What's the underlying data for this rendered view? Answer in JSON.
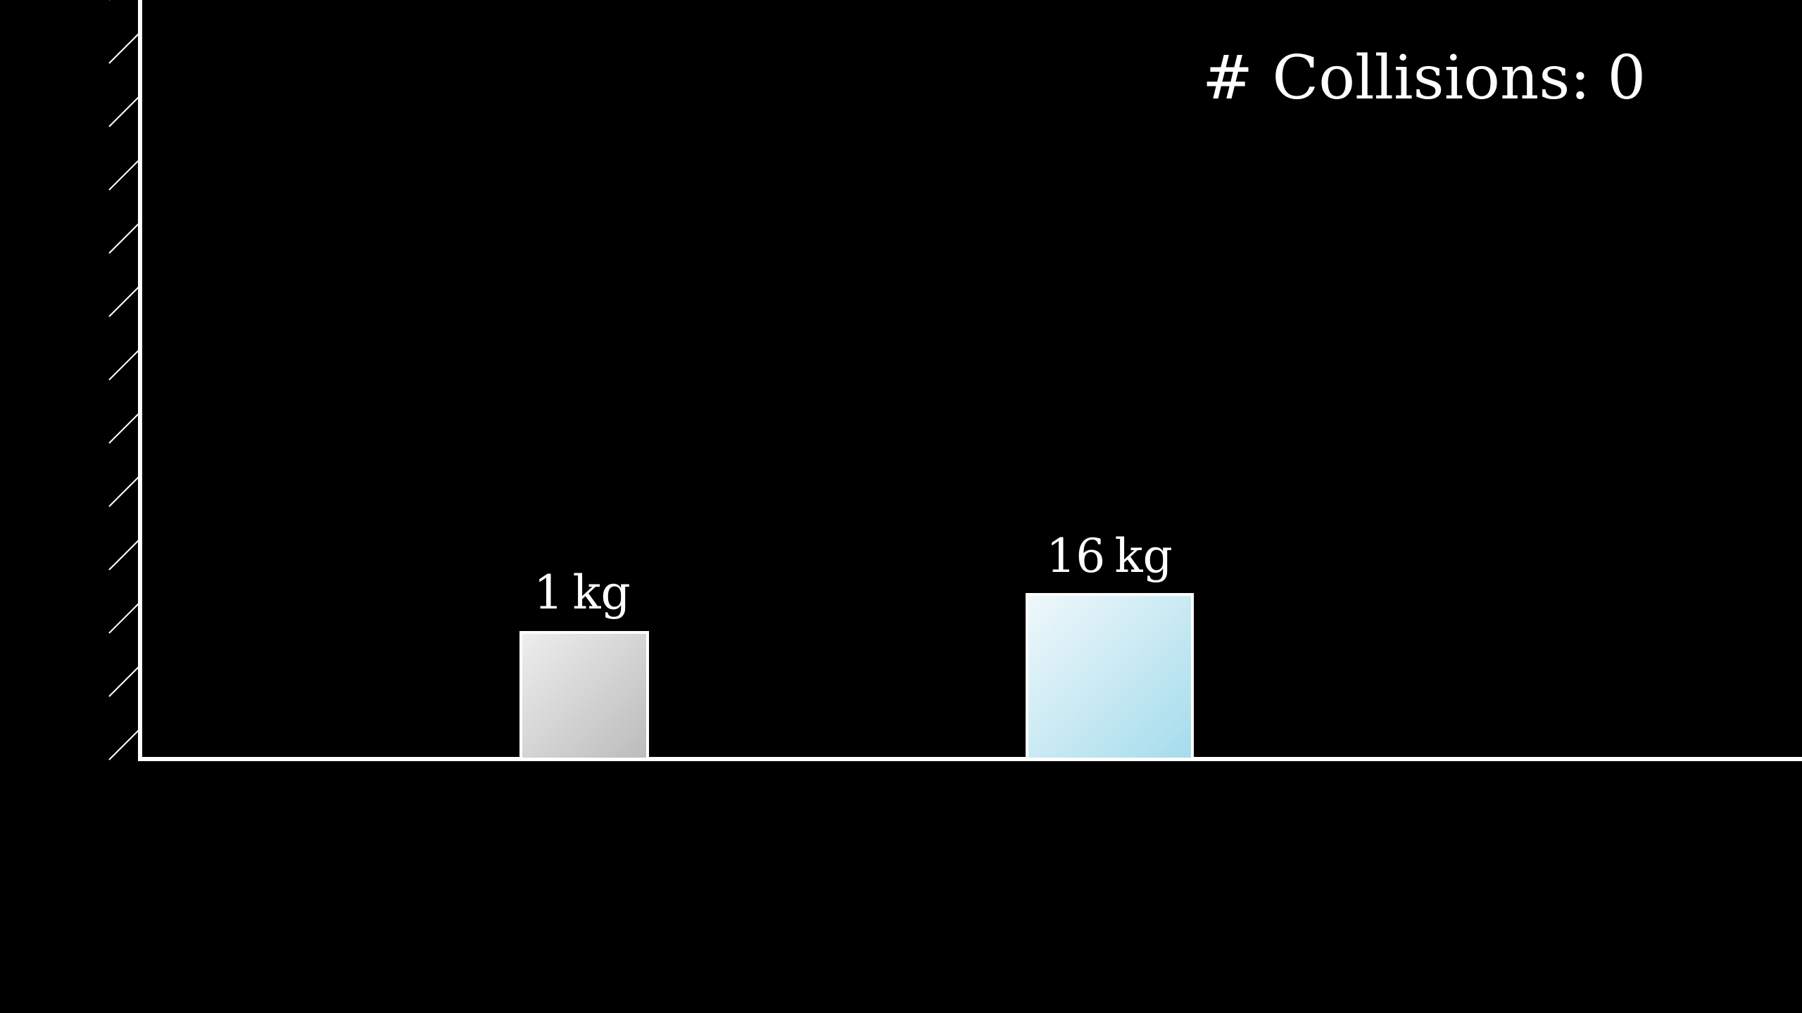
{
  "counter": {
    "prefix": "# Collisions:",
    "value": "0"
  },
  "blocks": [
    {
      "mass": "1",
      "unit": "kg",
      "color_top": "#eeeeee",
      "color_bottom": "#bbbbbb",
      "border_color": "#ffffff"
    },
    {
      "mass": "16",
      "unit": "kg",
      "color_top": "#f0f8fb",
      "color_bottom": "#a4dcec",
      "border_color": "#ffffff"
    }
  ],
  "colors": {
    "background": "#000000",
    "wall": "#ffffff",
    "floor": "#ffffff"
  }
}
